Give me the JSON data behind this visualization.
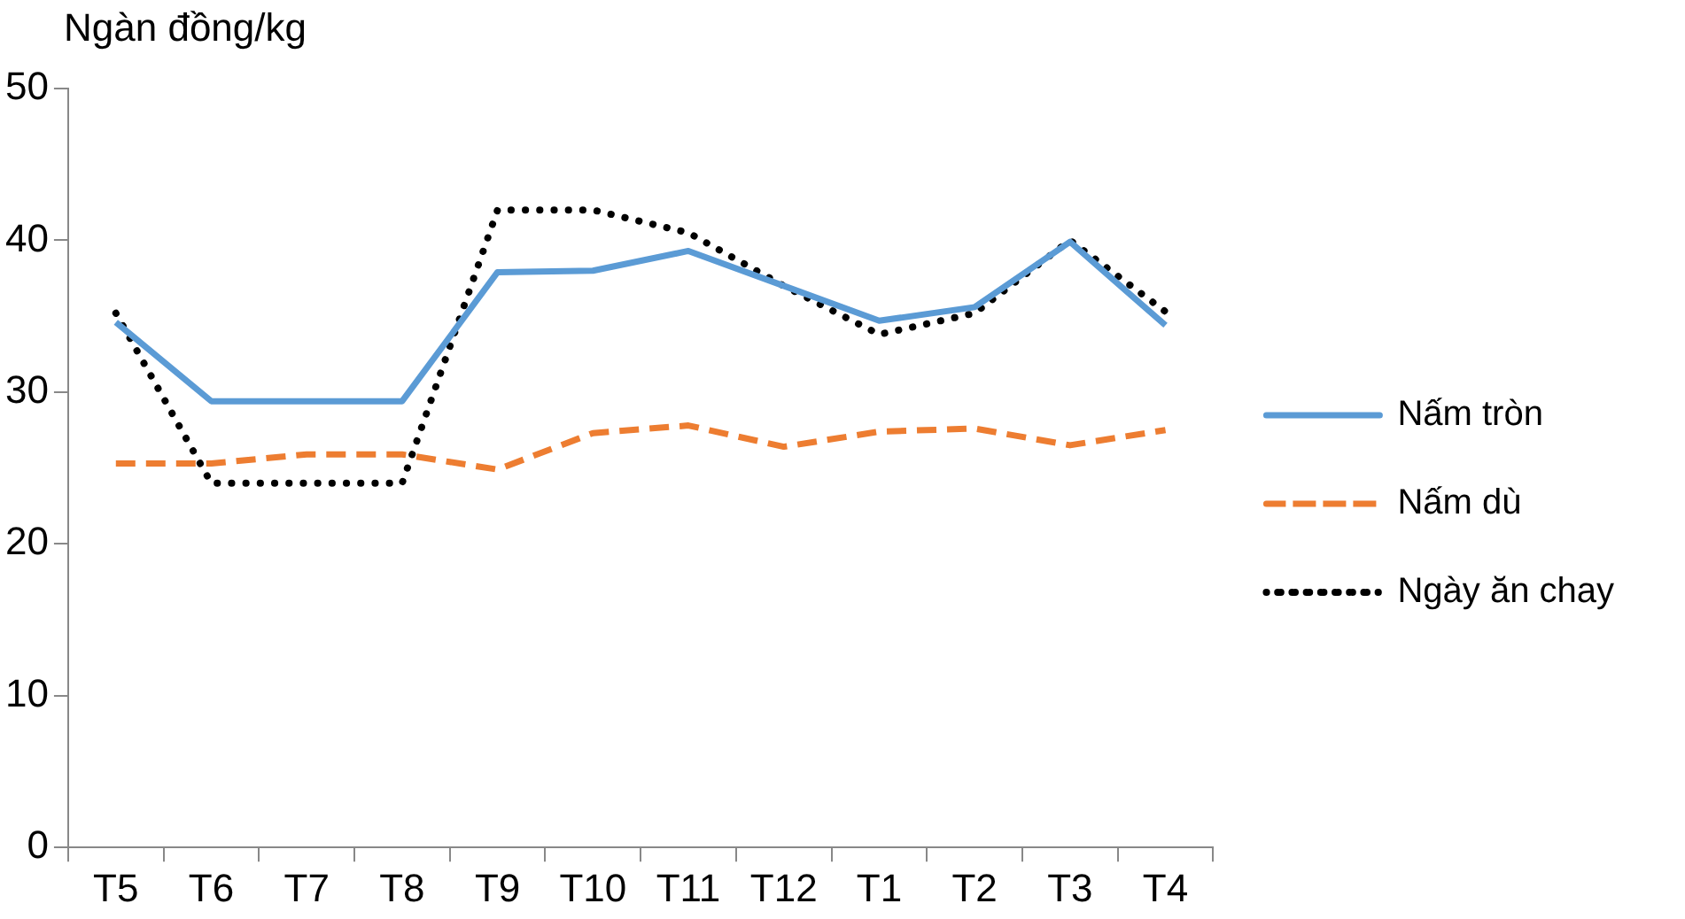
{
  "chart_data": {
    "type": "line",
    "ylabel": "Ngàn đồng/kg",
    "categories": [
      "T5",
      "T6",
      "T7",
      "T8",
      "T9",
      "T10",
      "T11",
      "T12",
      "T1",
      "T2",
      "T3",
      "T4"
    ],
    "series": [
      {
        "name": "Nấm tròn",
        "color": "#5b9bd5",
        "line_style": "solid",
        "values": [
          34.6,
          29.4,
          29.4,
          29.4,
          37.9,
          38,
          39.3,
          37,
          34.7,
          35.6,
          39.9,
          34.4
        ]
      },
      {
        "name": "Nấm dù",
        "color": "#ed7d31",
        "line_style": "dashed",
        "values": [
          25.3,
          25.3,
          25.9,
          25.9,
          24.9,
          27.3,
          27.8,
          26.4,
          27.4,
          27.6,
          26.5,
          27.5
        ]
      },
      {
        "name": "Ngày ăn chay",
        "color": "#000000",
        "line_style": "dotted",
        "values": [
          35.2,
          24,
          24,
          24,
          42,
          42,
          40.5,
          37,
          33.8,
          35.2,
          40,
          35.3
        ]
      }
    ],
    "ylim": [
      0,
      50
    ],
    "yticks": [
      0,
      10,
      20,
      30,
      40,
      50
    ],
    "grid": false,
    "legend": "right",
    "marker": "none"
  }
}
